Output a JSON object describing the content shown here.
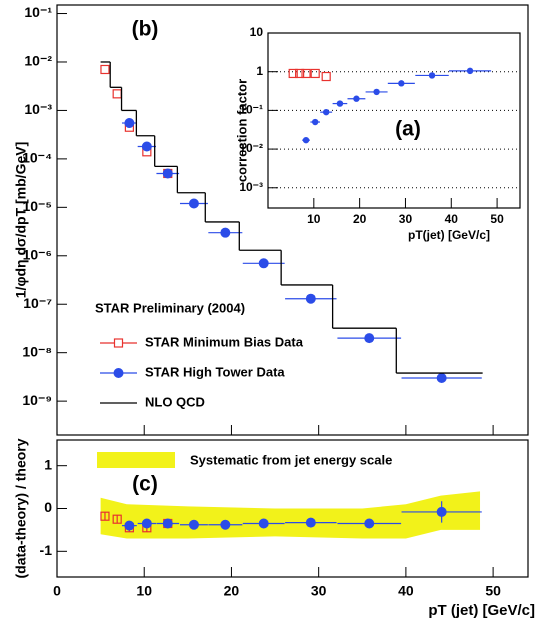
{
  "chart_data": [
    {
      "type": "scatter",
      "label": "(b)",
      "ylabel": "1/φdη dσ/dpT [mb/GeV]",
      "log_y": true,
      "xlim": [
        0,
        54
      ],
      "ylim": [
        0.15,
        2e-10
      ],
      "xticks": [
        0,
        10,
        20,
        30,
        40,
        50
      ],
      "xtick_labels": false,
      "yticks": [
        {
          "value": 0.1,
          "label": "10⁻¹"
        },
        {
          "value": 0.01,
          "label": "10⁻²"
        },
        {
          "value": 0.001,
          "label": "10⁻³"
        },
        {
          "value": 0.0001,
          "label": "10⁻⁴"
        },
        {
          "value": 1e-05,
          "label": "10⁻⁵"
        },
        {
          "value": 1e-06,
          "label": "10⁻⁶"
        },
        {
          "value": 1e-07,
          "label": "10⁻⁷"
        },
        {
          "value": 1e-08,
          "label": "10⁻⁸"
        },
        {
          "value": 1e-09,
          "label": "10⁻⁹"
        }
      ],
      "legend_title": "STAR Preliminary (2004)",
      "series": [
        {
          "name": "STAR Minimum Bias Data",
          "color": "#e8322e",
          "marker": "open-square",
          "x": [
            5.5,
            6.9,
            8.3,
            10.3,
            12.7
          ],
          "values": [
            0.007,
            0.0022,
            0.00045,
            0.00014,
            5e-05
          ]
        },
        {
          "name": "STAR High Tower Data",
          "color": "#2b4ce8",
          "marker": "circle",
          "x": [
            8.3,
            10.3,
            12.7,
            15.7,
            19.3,
            23.7,
            29.1,
            35.8,
            44.1
          ],
          "xerr": [
            0.85,
            1.05,
            1.3,
            1.6,
            1.95,
            2.4,
            2.95,
            3.65,
            4.6
          ],
          "values": [
            0.00055,
            0.00018,
            5e-05,
            1.2e-05,
            3e-06,
            7e-07,
            1.3e-07,
            2e-08,
            3e-09
          ]
        },
        {
          "name": "NLO QCD",
          "color": "#000000",
          "style": "step",
          "bins": [
            5.0,
            6.1,
            7.4,
            9.1,
            11.2,
            13.8,
            17.0,
            20.9,
            25.7,
            31.6,
            38.9,
            48.8
          ],
          "values": [
            0.01,
            0.003,
            0.001,
            0.0003,
            7e-05,
            2e-05,
            5e-06,
            1.3e-06,
            2.5e-07,
            3.2e-08,
            3.8e-09
          ]
        }
      ]
    },
    {
      "type": "scatter",
      "label": "(a)",
      "xlabel": "pT(jet) [GeV/c]",
      "ylabel": "correction factor",
      "log_y": true,
      "grid": "dotted",
      "xlim": [
        0,
        55
      ],
      "ylim": [
        10,
        0.0003
      ],
      "xticks": [
        10,
        20,
        30,
        40,
        50
      ],
      "yticks": [
        {
          "value": 10,
          "label": "10"
        },
        1,
        {
          "value": 0.1,
          "label": "10⁻¹"
        },
        {
          "value": 0.01,
          "label": "10⁻²"
        },
        {
          "value": 0.001,
          "label": "10⁻³"
        }
      ],
      "series": [
        {
          "name": "STAR Minimum Bias Data",
          "color": "#e8322e",
          "marker": "open-square",
          "x": [
            5.5,
            6.9,
            8.3,
            10.3,
            12.7
          ],
          "values": [
            0.9,
            0.9,
            0.9,
            0.9,
            0.75
          ]
        },
        {
          "name": "STAR High Tower Data",
          "color": "#2b4ce8",
          "marker": "circle",
          "x": [
            8.3,
            10.3,
            12.7,
            15.7,
            19.3,
            23.7,
            29.1,
            35.8,
            44.1
          ],
          "xerr": [
            0.85,
            1.05,
            1.3,
            1.6,
            1.95,
            2.4,
            2.95,
            3.65,
            4.6
          ],
          "values": [
            0.017,
            0.05,
            0.09,
            0.15,
            0.2,
            0.3,
            0.5,
            0.8,
            1.05
          ]
        }
      ]
    },
    {
      "type": "scatter",
      "label": "(c)",
      "xlabel": "pT (jet) [GeV/c]",
      "ylabel": "(data-theory) / theory",
      "xlim": [
        0,
        54
      ],
      "ylim": [
        -1.6,
        1.6
      ],
      "xticks": [
        0,
        10,
        20,
        30,
        40,
        50
      ],
      "yticks": [
        -1,
        0,
        1
      ],
      "band": {
        "name": "Systematic from jet energy scale",
        "color": "#f2f21a",
        "x": [
          5.0,
          8.0,
          15.0,
          25.0,
          35.0,
          40.0,
          44.0,
          48.5
        ],
        "upper": [
          0.25,
          0.1,
          0.05,
          0.0,
          0.0,
          0.1,
          0.3,
          0.4
        ],
        "lower": [
          -0.6,
          -0.7,
          -0.7,
          -0.65,
          -0.7,
          -0.7,
          -0.5,
          -0.5
        ]
      },
      "series": [
        {
          "name": "STAR Minimum Bias Data",
          "color": "#e8322e",
          "marker": "open-square",
          "x": [
            5.5,
            6.9,
            8.3,
            10.3,
            12.7
          ],
          "values": [
            -0.18,
            -0.25,
            -0.45,
            -0.45,
            -0.35
          ],
          "yerr": [
            0.1,
            0.1,
            0.1,
            0.1,
            0.1
          ]
        },
        {
          "name": "STAR High Tower Data",
          "color": "#2b4ce8",
          "marker": "circle",
          "x": [
            8.3,
            10.3,
            12.7,
            15.7,
            19.3,
            23.7,
            29.1,
            35.8,
            44.1
          ],
          "xerr": [
            0.85,
            1.05,
            1.3,
            1.6,
            1.95,
            2.4,
            2.95,
            3.65,
            4.6
          ],
          "values": [
            -0.4,
            -0.35,
            -0.35,
            -0.38,
            -0.38,
            -0.35,
            -0.33,
            -0.35,
            -0.08
          ],
          "yerr": [
            0.08,
            0.08,
            0.08,
            0.06,
            0.06,
            0.06,
            0.08,
            0.1,
            0.25
          ]
        }
      ]
    }
  ]
}
